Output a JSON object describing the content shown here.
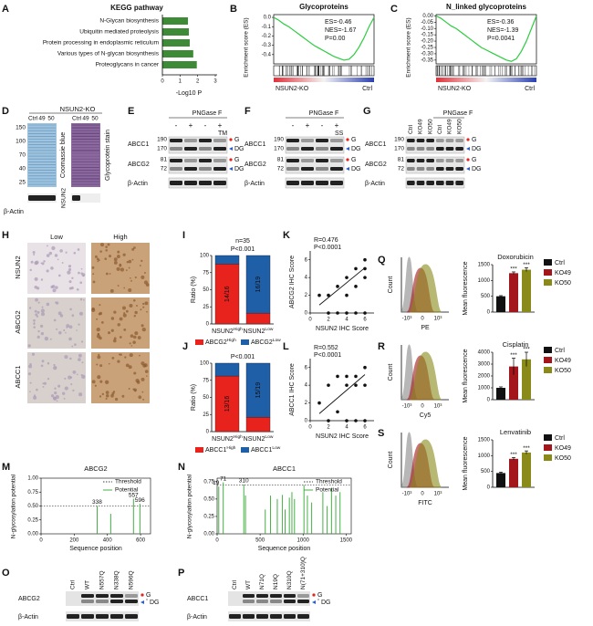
{
  "letters": [
    "A",
    "B",
    "C",
    "D",
    "E",
    "F",
    "G",
    "H",
    "I",
    "J",
    "K",
    "L",
    "M",
    "N",
    "O",
    "P",
    "Q",
    "R",
    "S"
  ],
  "A": {
    "title": "KEGG pathway",
    "categories": [
      "N-Glycan biosynthesis",
      "Ubiquitin mediated proteolysis",
      "Protein processing in endoplasmic reticulum",
      "Various types of N-glycan biosynthesis",
      "Proteoglycans in cancer"
    ],
    "values": [
      1.45,
      1.5,
      1.55,
      1.75,
      1.95
    ],
    "xlim": [
      0,
      3
    ],
    "xticks": [
      0,
      1,
      2,
      3
    ],
    "xlabel": "-Log10 P",
    "color": "#3d8b37"
  },
  "B": {
    "title": "Glycoproteins",
    "stats": [
      "ES=-0.46",
      "NES=-1.67",
      "P=0.00"
    ],
    "ylabel": "Enrichment score (ES)",
    "ylim": [
      -0.5,
      0.03
    ],
    "yticks": [
      {
        "value": 0,
        "label": "0.0"
      },
      -0.1,
      -0.2,
      -0.3,
      -0.4
    ],
    "es": [
      0,
      -0.03,
      -0.07,
      -0.1,
      -0.14,
      -0.18,
      -0.22,
      -0.26,
      -0.3,
      -0.33,
      -0.36,
      -0.39,
      -0.42,
      -0.44,
      -0.46,
      -0.45,
      -0.4,
      -0.32,
      -0.22,
      -0.1,
      0
    ],
    "left": "NSUN2-KO",
    "right": "Ctrl",
    "color": "#2ecc40"
  },
  "C": {
    "title": "N_linked glycoproteins",
    "stats": [
      "ES=-0.36",
      "NES=-1.39",
      "P=0.0041"
    ],
    "ylabel": "Enrichment score (ES)",
    "ylim": [
      -0.38,
      0.01
    ],
    "yticks": [
      {
        "value": 0,
        "label": "0.00"
      },
      -0.05,
      {
        "value": -0.1,
        "label": "-0.10"
      },
      -0.15,
      {
        "value": -0.2,
        "label": "-0.20"
      },
      -0.25,
      {
        "value": -0.3,
        "label": "-0.30"
      },
      -0.35
    ],
    "es": [
      0,
      -0.02,
      -0.05,
      -0.08,
      -0.1,
      -0.13,
      -0.16,
      -0.19,
      -0.22,
      -0.25,
      -0.27,
      -0.29,
      -0.31,
      -0.33,
      -0.35,
      -0.36,
      -0.34,
      -0.28,
      -0.2,
      -0.1,
      0
    ],
    "left": "NSUN2-KO",
    "right": "Ctrl",
    "color": "#2ecc40"
  },
  "D": {
    "title": "NSUN2-KO",
    "lanes": [
      "Ctrl",
      "49",
      "50"
    ],
    "lanes2": [
      "Ctrl",
      "49",
      "50"
    ],
    "markers": [
      150,
      100,
      70,
      40,
      25
    ],
    "stain1": "Coomassie blue",
    "stain2": "Glycoprotein stain",
    "row1": "β-Actin",
    "row2": "NSUN2"
  },
  "E": {
    "header": "PNGase F",
    "lanes": [
      "-",
      "+",
      "-",
      "+"
    ],
    "treat": "TM",
    "proteins": [
      "ABCC1",
      "ABCG2",
      "β-Actin"
    ],
    "sizes": [
      [
        190,
        170
      ],
      [
        81,
        72
      ]
    ],
    "marks": [
      "G",
      "DG"
    ]
  },
  "F": {
    "header": "PNGase F",
    "lanes": [
      "-",
      "+",
      "-",
      "+"
    ],
    "treat": "SS",
    "proteins": [
      "ABCC1",
      "ABCG2",
      "β-Actin"
    ],
    "sizes": [
      [
        190,
        170
      ],
      [
        81,
        72
      ]
    ],
    "marks": [
      "G",
      "DG"
    ]
  },
  "G": {
    "header": "PNGase F",
    "lanes": [
      "Ctrl",
      "KO49",
      "KO50",
      "Ctrl",
      "KO49",
      "KO50"
    ],
    "proteins": [
      "ABCC1",
      "ABCG2",
      "β-Actin"
    ],
    "sizes": [
      [
        190,
        170
      ],
      [
        81,
        72
      ]
    ],
    "marks": [
      "G",
      "DG"
    ]
  },
  "H": {
    "cols": [
      "Low",
      "High"
    ],
    "rows": [
      "NSUN2",
      "ABCG2",
      "ABCC1"
    ]
  },
  "I": {
    "n": "n=35",
    "p": "P<0.001",
    "ylabel": "Ratio (%)",
    "ylim": [
      0,
      100
    ],
    "yticks": [
      0,
      25,
      50,
      75,
      100
    ],
    "categories": [
      {
        "base": "NSUN2",
        "sup": "High"
      },
      {
        "base": "NSUN2",
        "sup": "Low"
      }
    ],
    "series": [
      {
        "name": {
          "base": "ABCG2",
          "sup": "High"
        },
        "color": "#e8231e",
        "values": [
          87.5,
          15.8
        ],
        "value_labels": [
          "14/16",
          null
        ]
      },
      {
        "name": {
          "base": "ABCG2",
          "sup": "Low"
        },
        "color": "#1f5fa8",
        "values": [
          12.5,
          84.2
        ],
        "value_labels": [
          null,
          "16/19"
        ]
      }
    ]
  },
  "J": {
    "p": "P<0.001",
    "ylabel": "Ratio (%)",
    "ylim": [
      0,
      100
    ],
    "yticks": [
      0,
      25,
      50,
      75,
      100
    ],
    "categories": [
      {
        "base": "NSUN2",
        "sup": "High"
      },
      {
        "base": "NSUN2",
        "sup": "Low"
      }
    ],
    "series": [
      {
        "name": {
          "base": "ABCC1",
          "sup": "High"
        },
        "color": "#e8231e",
        "values": [
          81.25,
          21.1
        ],
        "value_labels": [
          "13/16",
          null
        ]
      },
      {
        "name": {
          "base": "ABCC1",
          "sup": "Low"
        },
        "color": "#1f5fa8",
        "values": [
          18.75,
          78.9
        ],
        "value_labels": [
          null,
          "15/19"
        ]
      }
    ]
  },
  "K": {
    "stats": [
      "R=0.476",
      "P<0.0001"
    ],
    "ylabel": "ABCG2 IHC Score",
    "xlabel": "NSUN2 IHC Score",
    "xlim": [
      0,
      7
    ],
    "ylim": [
      0,
      7
    ],
    "xticks": [
      0,
      2,
      4,
      6
    ],
    "yticks": [
      0,
      2,
      4,
      6
    ],
    "x": [
      1,
      2,
      2,
      3,
      3,
      4,
      4,
      4,
      5,
      5,
      5,
      6,
      6,
      6,
      6
    ],
    "y": [
      2,
      0,
      2,
      0,
      3,
      0,
      2,
      4,
      0,
      3,
      5,
      0,
      4,
      5,
      6
    ],
    "fit_x": [
      1,
      6
    ],
    "fit_y": [
      0.9,
      5.1
    ]
  },
  "L": {
    "stats": [
      "R=0.552",
      "P<0.0001"
    ],
    "ylabel": "ABCC1 IHC Score",
    "xlabel": "NSUN2 IHC Score",
    "xlim": [
      0,
      7
    ],
    "ylim": [
      0,
      7
    ],
    "xticks": [
      0,
      2,
      4,
      6
    ],
    "yticks": [
      0,
      2,
      4,
      6
    ],
    "x": [
      1,
      2,
      2,
      3,
      3,
      4,
      4,
      4,
      5,
      5,
      5,
      6,
      6,
      6
    ],
    "y": [
      2,
      0,
      4,
      1,
      5,
      0,
      4,
      5,
      0,
      4,
      5,
      0,
      4,
      6
    ],
    "fit_x": [
      1,
      6
    ],
    "fit_y": [
      0.8,
      5.2
    ]
  },
  "M": {
    "title": "ABCG2",
    "ylabel": "N-glycosylation potential",
    "xlabel": "Sequence position",
    "legend": [
      "Threshold",
      "Potential"
    ],
    "threshold": 0.5,
    "xlim": [
      0,
      660
    ],
    "ylim": [
      0,
      1
    ],
    "xticks": [
      0,
      200,
      400,
      600
    ],
    "yticks": [
      {
        "value": 0,
        "label": "0.00"
      },
      0.25,
      {
        "value": 0.5,
        "label": "0.50"
      },
      0.75,
      {
        "value": 1,
        "label": "1.00"
      }
    ],
    "x": [
      338,
      420,
      557,
      596
    ],
    "values": [
      0.5,
      0.36,
      0.63,
      0.54
    ],
    "x_labels": [
      "338",
      null,
      "557",
      "596"
    ]
  },
  "N": {
    "title": "ABCC1",
    "ylabel": "N-glycosylation potential",
    "xlabel": "Sequence position",
    "legend": [
      "Threshold",
      "Potential"
    ],
    "threshold": 0.7,
    "xlim": [
      0,
      1560
    ],
    "ylim": [
      0,
      0.8
    ],
    "xticks": [
      0,
      500,
      1000,
      1500
    ],
    "yticks": [
      {
        "value": 0,
        "label": "0.00"
      },
      0.25,
      {
        "value": 0.5,
        "label": "0.50"
      },
      0.75
    ],
    "x": [
      19,
      71,
      310,
      330,
      560,
      620,
      700,
      760,
      790,
      840,
      870,
      900,
      1010,
      1050,
      1100,
      1230,
      1280,
      1330,
      1380,
      1430
    ],
    "values": [
      0.68,
      0.74,
      0.71,
      0.55,
      0.35,
      0.55,
      0.5,
      0.56,
      0.35,
      0.52,
      0.6,
      0.5,
      0.7,
      0.55,
      0.45,
      0.6,
      0.4,
      0.65,
      0.55,
      0.6
    ],
    "x_labels": [
      "19",
      "71",
      "310",
      null,
      null,
      null,
      null,
      null,
      null,
      null,
      null,
      null,
      null,
      null,
      null,
      null,
      null,
      null,
      null,
      null
    ]
  },
  "O": {
    "lanes": [
      "Ctrl",
      "WT",
      "N557Q",
      "N338Q",
      "N596Q"
    ],
    "rows": [
      "ABCG2",
      "β-Actin"
    ],
    "marks": [
      "G",
      "DG"
    ]
  },
  "P": {
    "lanes": [
      "Ctrl",
      "WT",
      "N71Q",
      "N19Q",
      "N310Q",
      "N(71+310)Q"
    ],
    "rows": [
      "ABCC1",
      "β-Actin"
    ],
    "marks": [
      "G",
      "DG"
    ]
  },
  "Q": {
    "hist_ticks": [
      "-10³",
      "0",
      "10³"
    ],
    "hist_xlabel": "PE",
    "hist_ylabel": "Count",
    "title": "Doxorubicin",
    "ylabel": "Mean fluorescence",
    "categories": [
      "Ctrl",
      "KO49",
      "KO50"
    ],
    "colors": [
      "#111111",
      "#a3161b",
      "#8a8a1a"
    ],
    "values": [
      500,
      1230,
      1340
    ],
    "errors": [
      20,
      40,
      60
    ],
    "ylim": [
      0,
      1500
    ],
    "yticks": [
      0,
      500,
      1000,
      1500
    ],
    "sig": [
      "***",
      "***"
    ]
  },
  "R": {
    "hist_ticks": [
      "-10³",
      "0",
      "10³"
    ],
    "hist_xlabel": "Cy5",
    "hist_ylabel": "Count",
    "title": "Cisplatin",
    "ylabel": "Mean fluorescence",
    "categories": [
      "Ctrl",
      "KO49",
      "KO50"
    ],
    "colors": [
      "#111111",
      "#a3161b",
      "#8a8a1a"
    ],
    "values": [
      1000,
      2800,
      3400
    ],
    "errors": [
      80,
      700,
      600
    ],
    "ylim": [
      0,
      4000
    ],
    "yticks": [
      0,
      1000,
      2000,
      3000,
      4000
    ],
    "sig": [
      "***",
      "***"
    ]
  },
  "S": {
    "hist_ticks": [
      "-10³",
      "0",
      "10³"
    ],
    "hist_xlabel": "FITC",
    "hist_ylabel": "Count",
    "title": "Lenvatinib",
    "ylabel": "Mean fluorescence",
    "categories": [
      "Ctrl",
      "KO49",
      "KO50"
    ],
    "colors": [
      "#111111",
      "#a3161b",
      "#8a8a1a"
    ],
    "values": [
      450,
      900,
      1100
    ],
    "errors": [
      30,
      40,
      50
    ],
    "ylim": [
      0,
      1500
    ],
    "yticks": [
      0,
      500,
      1000,
      1500
    ],
    "sig": [
      "***",
      "***"
    ]
  }
}
